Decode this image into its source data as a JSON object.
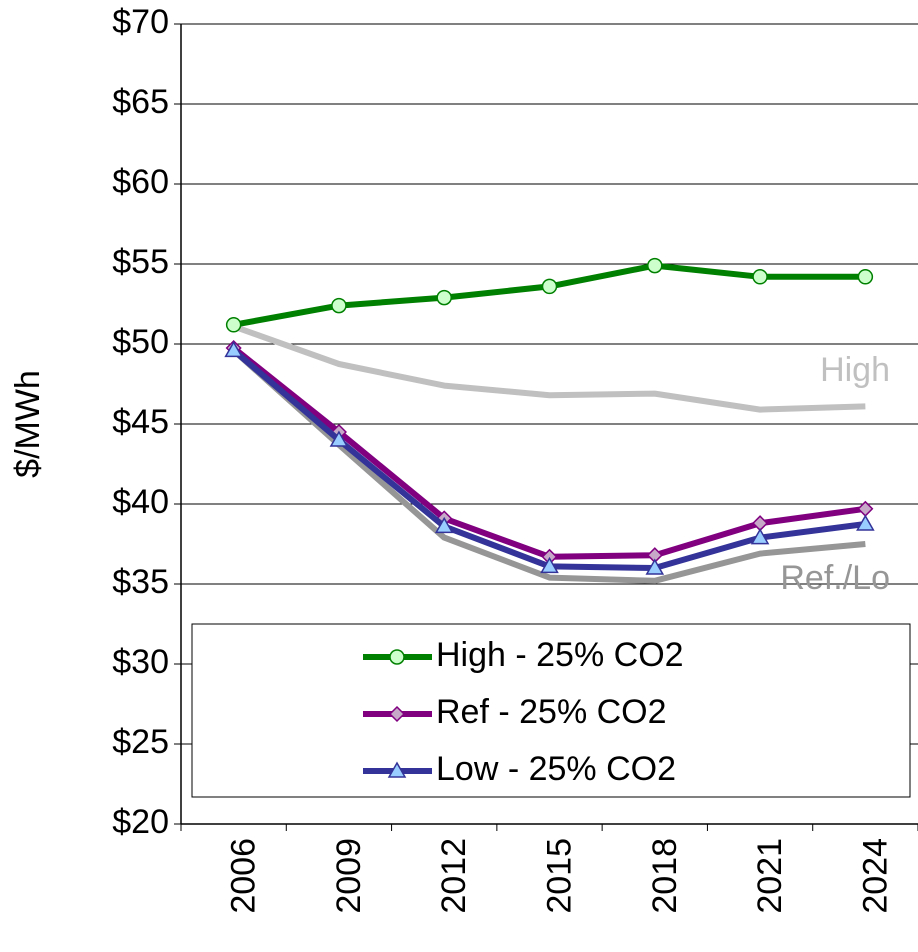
{
  "chart_data": {
    "type": "line",
    "y_label": "$/MWh",
    "categories": [
      "2006",
      "2009",
      "2012",
      "2015",
      "2018",
      "2021",
      "2024"
    ],
    "series": [
      {
        "name": "High - 25% CO2",
        "color": "#008000",
        "marker": "circle",
        "marker_fill": "#ccffcc",
        "values": [
          51.2,
          52.4,
          52.9,
          53.6,
          54.9,
          54.2,
          54.2
        ]
      },
      {
        "name": "Ref - 25% CO2",
        "color": "#800080",
        "marker": "diamond",
        "marker_fill": "#c8a8c8",
        "values": [
          49.75,
          44.5,
          39.1,
          36.7,
          36.8,
          38.8,
          39.7
        ]
      },
      {
        "name": "Low - 25% CO2",
        "color": "#333399",
        "marker": "triangle",
        "marker_fill": "#99ccff",
        "values": [
          49.6,
          44.0,
          38.6,
          36.1,
          36.0,
          37.9,
          38.75
        ]
      }
    ],
    "reference_lines": [
      {
        "name": "High",
        "color": "#c0c0c0",
        "values": [
          51.1,
          48.75,
          47.4,
          46.8,
          46.9,
          45.9,
          46.1
        ]
      },
      {
        "name": "Ref./Lo",
        "color": "#969696",
        "values": [
          49.6,
          43.7,
          37.9,
          35.4,
          35.2,
          36.9,
          37.5
        ]
      }
    ],
    "ylim": [
      20,
      70
    ],
    "yticks": [
      {
        "value": 20,
        "label": "$20"
      },
      {
        "value": 25,
        "label": "$25"
      },
      {
        "value": 30,
        "label": "$30"
      },
      {
        "value": 35,
        "label": "$35"
      },
      {
        "value": 40,
        "label": "$40"
      },
      {
        "value": 45,
        "label": "$45"
      },
      {
        "value": 50,
        "label": "$50"
      },
      {
        "value": 55,
        "label": "$55"
      },
      {
        "value": 60,
        "label": "$60"
      },
      {
        "value": 65,
        "label": "$65"
      },
      {
        "value": 70,
        "label": "$70"
      }
    ],
    "grid": true
  }
}
